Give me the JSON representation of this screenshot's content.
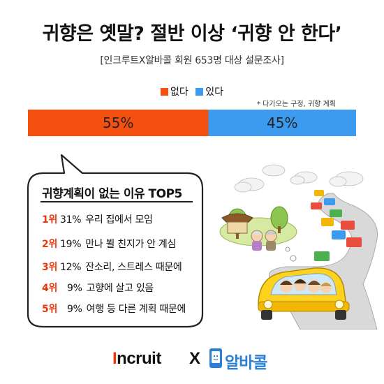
{
  "header": {
    "title": "귀향은 옛말? 절반 이상 ‘귀향 안 한다’",
    "subtitle": "[인크루트X알바콜 회원 653명 대상 설문조사]"
  },
  "legend": {
    "no_label": "없다",
    "yes_label": "있다",
    "no_color": "#f5500f",
    "yes_color": "#3d9bef",
    "note": "* 다가오는 구정, 귀향 계획"
  },
  "chart_data": {
    "type": "bar",
    "orientation": "horizontal-stacked",
    "categories": [
      "귀향 계획"
    ],
    "series": [
      {
        "name": "없다",
        "values": [
          55
        ],
        "label": "55%",
        "color": "#f5500f"
      },
      {
        "name": "있다",
        "values": [
          45
        ],
        "label": "45%",
        "color": "#3d9bef"
      }
    ],
    "xlim": [
      0,
      100
    ]
  },
  "reasons": {
    "title": "귀향계획이 없는 이유 TOP5",
    "items": [
      {
        "rank": "1위",
        "pct": "31%",
        "text": "우리 집에서 모임"
      },
      {
        "rank": "2위",
        "pct": "19%",
        "text": "만나 뵐 친지가 안 계심"
      },
      {
        "rank": "3위",
        "pct": "12%",
        "text": "잔소리, 스트레스 때문에"
      },
      {
        "rank": "4위",
        "pct": "9%",
        "text": "고향에 살고 있음"
      },
      {
        "rank": "5위",
        "pct": "9%",
        "text": "여행 등 다른 계획 때문에"
      }
    ]
  },
  "footer": {
    "incruit_pre": "I",
    "incruit_rest": "ncruit",
    "x": "X",
    "albacall": "알바콜"
  },
  "icons": {
    "illustration": "family-car-traffic-illustration",
    "albacall_logo": "phone-face-icon"
  }
}
